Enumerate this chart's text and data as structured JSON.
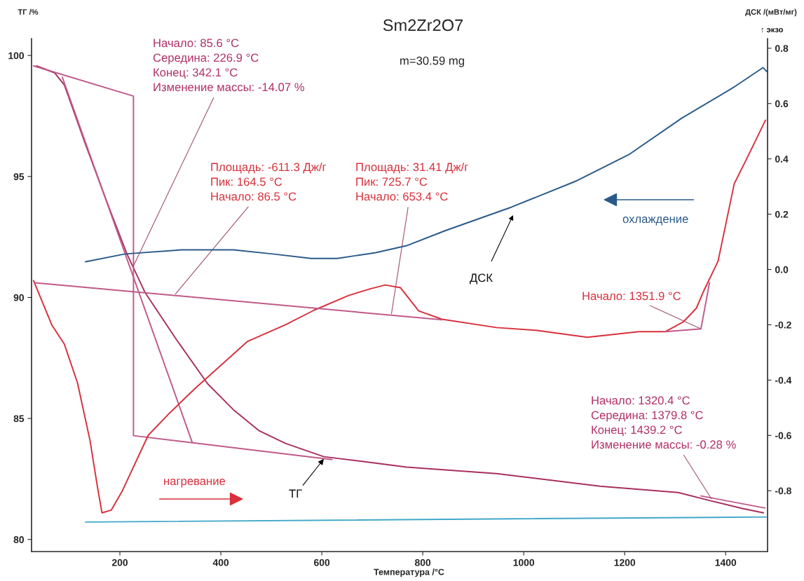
{
  "chart_data": {
    "type": "line",
    "title": "Sm2Zr2O7",
    "subtitle": "m=30.59 mg",
    "xlabel": "Температура /°C",
    "ylabel": "ТГ /%",
    "y2label": "ДСК /(мВт/мг)",
    "xlim": [
      25,
      1483
    ],
    "xticks": [
      200,
      400,
      600,
      800,
      1000,
      1200,
      1400
    ],
    "ylim": [
      79.5,
      100.7
    ],
    "yticks": [
      80,
      85,
      90,
      95,
      100
    ],
    "y2lim": [
      -1.02,
      0.835
    ],
    "y2ticks": [
      {
        "value": -0.8,
        "label": "-0.8"
      },
      {
        "value": -0.6,
        "label": "-0.6"
      },
      {
        "value": -0.4,
        "label": "-0.4"
      },
      {
        "value": -0.2,
        "label": "-0.2"
      },
      {
        "value": 0,
        "label": "0.0"
      },
      {
        "value": 0.2,
        "label": "0.2"
      },
      {
        "value": 0.4,
        "label": "0.4"
      },
      {
        "value": 0.6,
        "label": "0.6"
      },
      {
        "value": 0.8,
        "label": "0.8"
      }
    ],
    "grid": false,
    "marker": "none",
    "line_style": "solid",
    "series": [
      {
        "color": "#a8305e",
        "x": [
          35,
          71,
          90,
          132,
          178,
          214,
          250,
          312,
          374,
          425,
          476,
          528,
          604,
          682,
          768,
          946,
          1151,
          1306,
          1372,
          1433,
          1475
        ],
        "values": [
          99.57,
          99.28,
          98.78,
          96.32,
          93.74,
          91.8,
          90.2,
          88.26,
          86.43,
          85.36,
          84.49,
          83.97,
          83.42,
          83.22,
          82.99,
          82.72,
          82.2,
          81.94,
          81.59,
          81.28,
          81.1
        ]
      },
      {
        "color": "#d8303c",
        "axis": "y2",
        "x": [
          29,
          65,
          90,
          116,
          141,
          155,
          164.5,
          183,
          205,
          256,
          298,
          349,
          453,
          528,
          585,
          653,
          696,
          725.7,
          756,
          792,
          838,
          946,
          1024,
          1126,
          1228,
          1280,
          1316,
          1342,
          1357,
          1385,
          1401,
          1417,
          1443,
          1479
        ],
        "values": [
          -0.04,
          -0.2,
          -0.27,
          -0.41,
          -0.62,
          -0.78,
          -0.88,
          -0.87,
          -0.8,
          -0.6,
          -0.52,
          -0.43,
          -0.26,
          -0.2,
          -0.147,
          -0.094,
          -0.07,
          -0.056,
          -0.066,
          -0.15,
          -0.18,
          -0.21,
          -0.22,
          -0.245,
          -0.225,
          -0.225,
          -0.19,
          -0.14,
          -0.076,
          0.03,
          0.17,
          0.31,
          0.405,
          0.54
        ]
      },
      {
        "color": "#2a5a8a",
        "axis": "y2",
        "x": [
          132,
          210,
          322,
          425,
          503,
          579,
          631,
          707,
          768,
          844,
          975,
          1104,
          1208,
          1313,
          1417,
          1474,
          1482
        ],
        "values": [
          0.028,
          0.056,
          0.071,
          0.071,
          0.056,
          0.04,
          0.04,
          0.061,
          0.086,
          0.14,
          0.225,
          0.32,
          0.415,
          0.547,
          0.66,
          0.73,
          0.715
        ]
      },
      {
        "color": "#40a8c8",
        "x": [
          132,
          1480
        ],
        "values": [
          80.72,
          80.93
        ]
      },
      {
        "color": "#c05a8a",
        "x": [
          29,
          226.9,
          226.9,
          620
        ],
        "values": [
          99.57,
          98.32,
          84.29,
          83.3
        ]
      },
      {
        "color": "#c05a8a",
        "x": [
          86,
          343
        ],
        "values": [
          99.1,
          84.03
        ]
      },
      {
        "color": "#c05a8a",
        "x": [
          1351,
          1478
        ],
        "values": [
          81.8,
          81.3
        ]
      },
      {
        "color": "#c05a8a",
        "axis": "y2",
        "x": [
          32,
          838
        ],
        "values": [
          -0.048,
          -0.182
        ]
      },
      {
        "color": "#c05a8a",
        "axis": "y2",
        "x": [
          1280,
          1351,
          1368
        ],
        "values": [
          -0.225,
          -0.215,
          -0.048
        ]
      }
    ],
    "annotations": [
      {
        "text": "Начало: 85.6 °C\nСередина: 226.9 °C\nКонец: 342.1 °C\nИзменение массы: -14.07 %",
        "x": 226.9,
        "y": 91.3
      },
      {
        "text": "Площадь: -611.3 Дж/г\nПик: 164.5 °C\nНачало: 86.5 °C",
        "x": 310,
        "y": 90.14
      },
      {
        "text": "Площадь: 31.41 Дж/г\nПик: 725.7 °C\nНачало: 653.4 °C",
        "x": 738,
        "y": 89.33
      },
      {
        "text": "Начало: 1351.9 °C",
        "x": 1351,
        "y": 88.7
      },
      {
        "text": "Начало: 1320.4 °C\nСередина: 1379.8 °C\nКонец: 1439.2 °C\nИзменение массы: -0.28 %",
        "x": 1372,
        "y": 81.68
      },
      "ДСК",
      {
        "text": "ТГ",
        "x": 604,
        "y": 83.33
      },
      "нагревание",
      "охлаждение",
      "↑ экзо"
    ]
  }
}
